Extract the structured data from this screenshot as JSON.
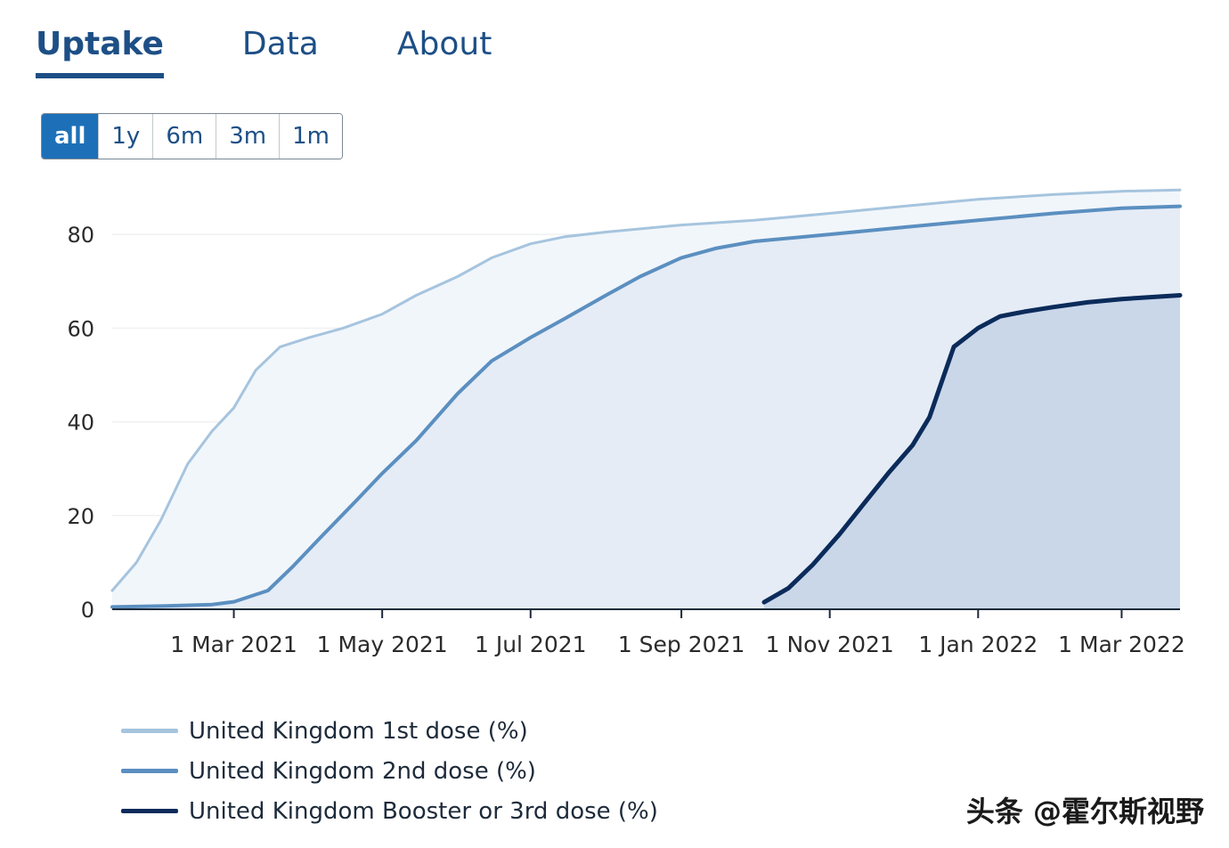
{
  "tabs": [
    {
      "label": "Uptake",
      "active": true
    },
    {
      "label": "Data",
      "active": false
    },
    {
      "label": "About",
      "active": false
    }
  ],
  "range_buttons": [
    {
      "label": "all",
      "active": true
    },
    {
      "label": "1y",
      "active": false
    },
    {
      "label": "6m",
      "active": false
    },
    {
      "label": "3m",
      "active": false
    },
    {
      "label": "1m",
      "active": false
    }
  ],
  "watermark": "头条 @霍尔斯视野",
  "colors": {
    "accent": "#1d70b8",
    "dose1": "#a6c4de",
    "dose2": "#5b8fc0",
    "booster": "#0b2b5a"
  },
  "chart_data": {
    "type": "area",
    "title": "",
    "xlabel": "",
    "ylabel": "",
    "ylim": [
      0,
      92
    ],
    "yticks": [
      0,
      20,
      40,
      60,
      80
    ],
    "xlim": [
      "2021-01-10",
      "2022-03-25"
    ],
    "xticks": [
      {
        "date": "2021-03-01",
        "label": "1 Mar 2021"
      },
      {
        "date": "2021-05-01",
        "label": "1 May 2021"
      },
      {
        "date": "2021-07-01",
        "label": "1 Jul 2021"
      },
      {
        "date": "2021-09-01",
        "label": "1 Sep 2021"
      },
      {
        "date": "2021-11-01",
        "label": "1 Nov 2021"
      },
      {
        "date": "2022-01-01",
        "label": "1 Jan 2022"
      },
      {
        "date": "2022-03-01",
        "label": "1 Mar 2022"
      }
    ],
    "grid": true,
    "legend": "bottom",
    "series": [
      {
        "name": "United Kingdom 1st dose (%)",
        "color": "#a6c4de",
        "fill": "#f0f5fb",
        "stroke_width": 3,
        "points": [
          [
            "2021-01-10",
            4
          ],
          [
            "2021-01-20",
            10
          ],
          [
            "2021-01-30",
            19
          ],
          [
            "2021-02-10",
            31
          ],
          [
            "2021-02-20",
            38
          ],
          [
            "2021-03-01",
            43
          ],
          [
            "2021-03-10",
            51
          ],
          [
            "2021-03-20",
            56
          ],
          [
            "2021-04-01",
            58
          ],
          [
            "2021-04-15",
            60
          ],
          [
            "2021-05-01",
            63
          ],
          [
            "2021-05-15",
            67
          ],
          [
            "2021-06-01",
            71
          ],
          [
            "2021-06-15",
            75
          ],
          [
            "2021-07-01",
            78
          ],
          [
            "2021-07-15",
            79.5
          ],
          [
            "2021-08-01",
            80.5
          ],
          [
            "2021-09-01",
            82
          ],
          [
            "2021-10-01",
            83
          ],
          [
            "2021-11-01",
            84.5
          ],
          [
            "2021-12-01",
            86
          ],
          [
            "2022-01-01",
            87.5
          ],
          [
            "2022-02-01",
            88.5
          ],
          [
            "2022-03-01",
            89.2
          ],
          [
            "2022-03-25",
            89.5
          ]
        ]
      },
      {
        "name": "United Kingdom 2nd dose (%)",
        "color": "#5b8fc0",
        "fill": "#e3ebf5",
        "stroke_width": 4,
        "points": [
          [
            "2021-01-10",
            0.5
          ],
          [
            "2021-02-01",
            0.7
          ],
          [
            "2021-02-20",
            1.0
          ],
          [
            "2021-03-01",
            1.6
          ],
          [
            "2021-03-15",
            4
          ],
          [
            "2021-03-25",
            9
          ],
          [
            "2021-04-05",
            15
          ],
          [
            "2021-04-20",
            23
          ],
          [
            "2021-05-01",
            29
          ],
          [
            "2021-05-15",
            36
          ],
          [
            "2021-06-01",
            46
          ],
          [
            "2021-06-15",
            53
          ],
          [
            "2021-07-01",
            58
          ],
          [
            "2021-07-15",
            62
          ],
          [
            "2021-08-01",
            67
          ],
          [
            "2021-08-15",
            71
          ],
          [
            "2021-09-01",
            75
          ],
          [
            "2021-09-15",
            77
          ],
          [
            "2021-10-01",
            78.5
          ],
          [
            "2021-11-01",
            80
          ],
          [
            "2021-12-01",
            81.5
          ],
          [
            "2022-01-01",
            83
          ],
          [
            "2022-02-01",
            84.5
          ],
          [
            "2022-03-01",
            85.6
          ],
          [
            "2022-03-25",
            86
          ]
        ]
      },
      {
        "name": "United Kingdom Booster or 3rd dose (%)",
        "color": "#0b2b5a",
        "fill": "#c7d5e8",
        "stroke_width": 5,
        "points": [
          [
            "2021-10-05",
            1.5
          ],
          [
            "2021-10-15",
            4.5
          ],
          [
            "2021-10-25",
            9.5
          ],
          [
            "2021-11-05",
            16
          ],
          [
            "2021-11-15",
            22.5
          ],
          [
            "2021-11-25",
            29
          ],
          [
            "2021-12-05",
            35
          ],
          [
            "2021-12-12",
            41
          ],
          [
            "2021-12-16",
            47
          ],
          [
            "2021-12-22",
            56
          ],
          [
            "2022-01-01",
            60
          ],
          [
            "2022-01-10",
            62.5
          ],
          [
            "2022-01-20",
            63.5
          ],
          [
            "2022-02-01",
            64.5
          ],
          [
            "2022-02-15",
            65.5
          ],
          [
            "2022-03-01",
            66.2
          ],
          [
            "2022-03-25",
            67
          ]
        ]
      }
    ]
  }
}
